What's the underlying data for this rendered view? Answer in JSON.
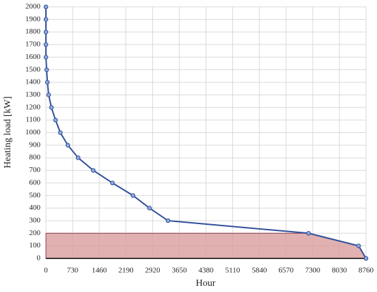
{
  "chart_data": {
    "type": "line",
    "x_label": "Hour",
    "y_label": "Heating load [kW]",
    "series": [
      {
        "color": "#2f4f9a",
        "marker_color": "#8fa8dc",
        "x": [
          0,
          0,
          0,
          0,
          0,
          20,
          40,
          75,
          150,
          263,
          394,
          600,
          882,
          1295,
          1820,
          2383,
          2834,
          3340,
          7187,
          8557,
          8760
        ],
        "values": [
          2000,
          1900,
          1800,
          1700,
          1600,
          1500,
          1400,
          1300,
          1200,
          1100,
          1000,
          900,
          800,
          700,
          600,
          500,
          400,
          300,
          200,
          100,
          0
        ]
      }
    ],
    "shade_color": "#d99c9c",
    "shade_edge_color": "#8b3a4a",
    "xlim": [
      0,
      8760
    ],
    "xticks": [
      0,
      730,
      1460,
      2190,
      2920,
      3650,
      4380,
      5110,
      5840,
      6570,
      7300,
      8030,
      8760
    ],
    "ylim": [
      0,
      2000
    ],
    "yticks": [
      0,
      100,
      200,
      300,
      400,
      500,
      600,
      700,
      800,
      900,
      1000,
      1100,
      1200,
      1300,
      1400,
      1500,
      1600,
      1700,
      1800,
      1900,
      2000
    ],
    "grid": true
  }
}
